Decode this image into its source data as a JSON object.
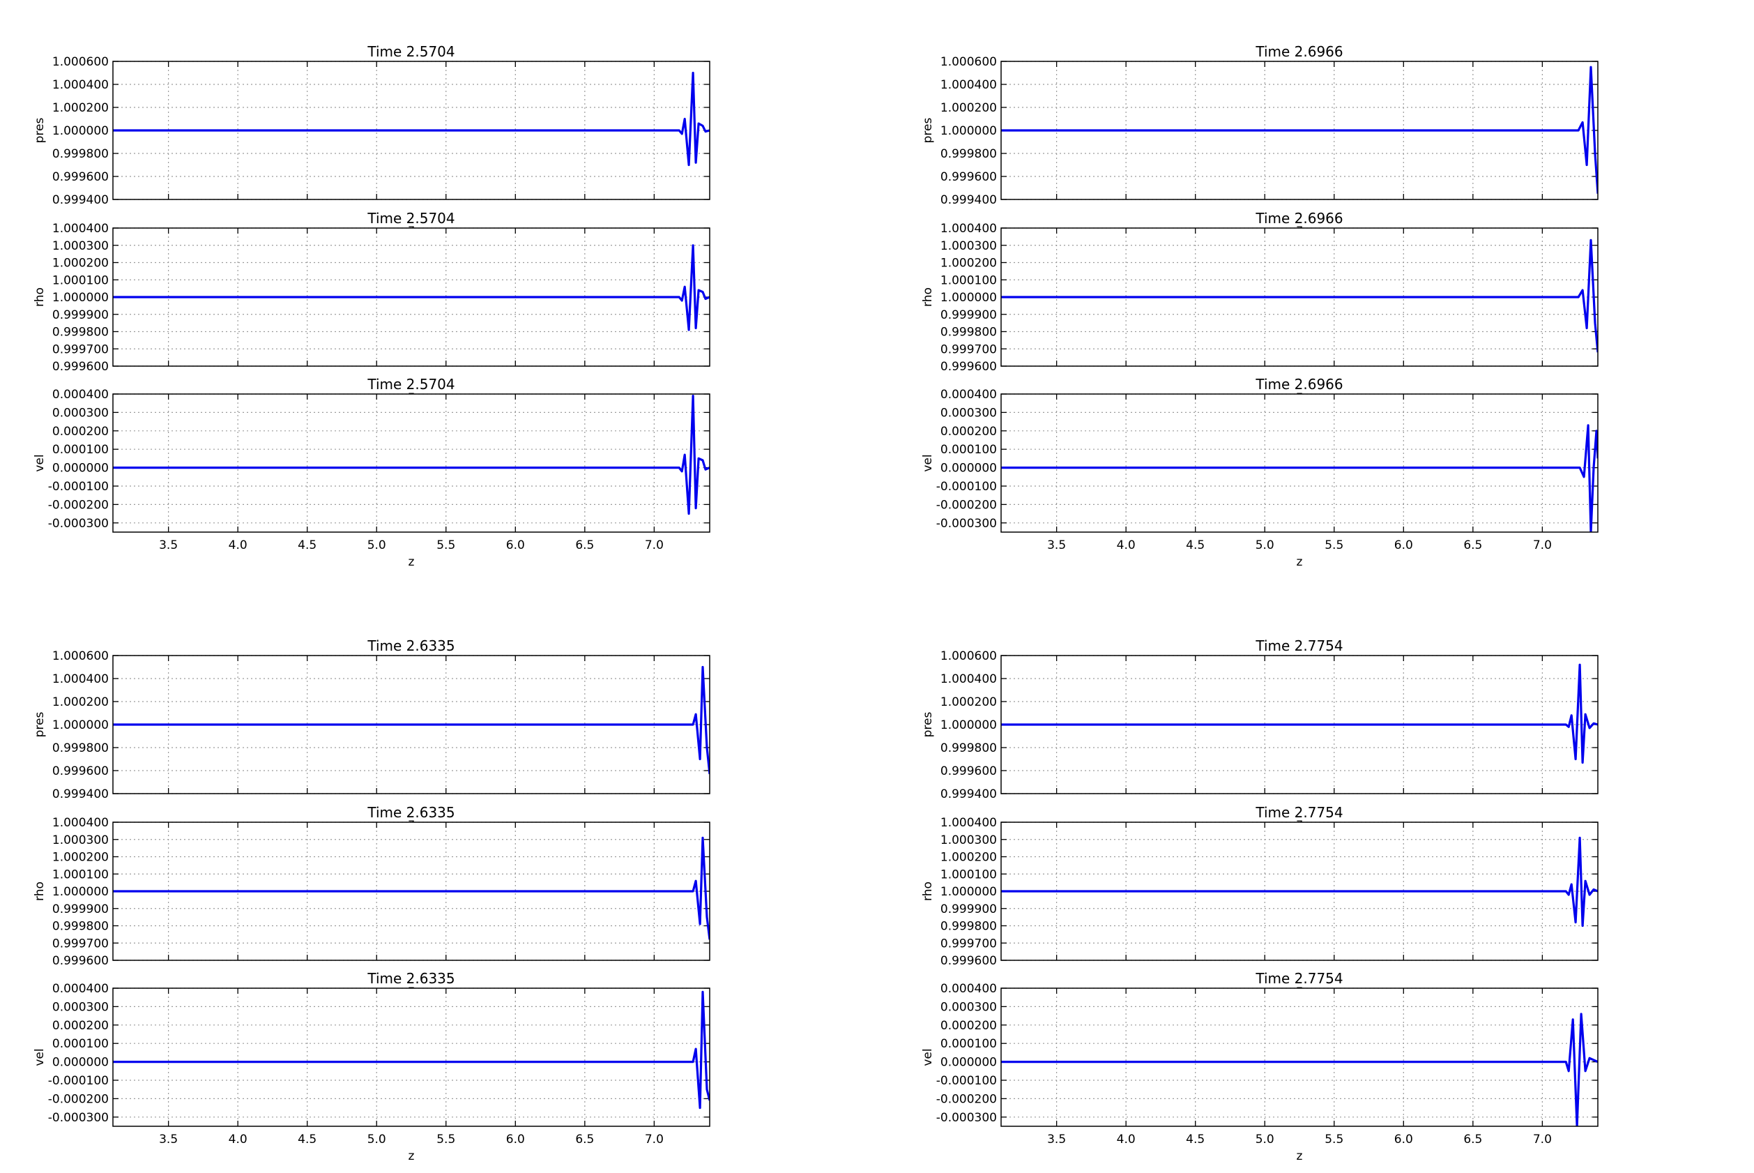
{
  "figure": {
    "line_color": "#0000ee",
    "grid_color": "#9a9a9a",
    "background": "#ffffff"
  },
  "chart_data": [
    {
      "type": "line",
      "title": "Time 2.5704",
      "xlabel": "z",
      "ylabel": "pres",
      "xlim": [
        3.1,
        7.4
      ],
      "ylim": [
        0.9994,
        1.0006
      ],
      "xticks": [
        3.5,
        4.0,
        4.5,
        5.0,
        5.5,
        6.0,
        6.5,
        7.0
      ],
      "xtick_labels": [],
      "yticks": [
        "1.000600",
        "1.000400",
        "1.000200",
        "1.000000",
        "0.999800",
        "0.999600",
        "0.999400"
      ],
      "grid": true,
      "series": [
        {
          "x": [
            3.1,
            7.14,
            7.18,
            7.2,
            7.22,
            7.25,
            7.28,
            7.3,
            7.32,
            7.35,
            7.37,
            7.4
          ],
          "y": [
            1.0,
            1.0,
            1.0,
            0.99997,
            1.0001,
            0.9997,
            1.0005,
            0.99972,
            1.00006,
            1.00004,
            0.99999,
            1.0
          ]
        }
      ]
    },
    {
      "type": "line",
      "title": "Time 2.5704",
      "xlabel": "z",
      "ylabel": "rho",
      "xlim": [
        3.1,
        7.4
      ],
      "ylim": [
        0.9996,
        1.0004
      ],
      "xticks": [
        3.5,
        4.0,
        4.5,
        5.0,
        5.5,
        6.0,
        6.5,
        7.0
      ],
      "xtick_labels": [],
      "yticks": [
        "1.000400",
        "1.000300",
        "1.000200",
        "1.000100",
        "1.000000",
        "0.999900",
        "0.999800",
        "0.999700",
        "0.999600"
      ],
      "grid": true,
      "series": [
        {
          "x": [
            3.1,
            7.14,
            7.18,
            7.2,
            7.22,
            7.25,
            7.28,
            7.3,
            7.32,
            7.35,
            7.37,
            7.4
          ],
          "y": [
            1.0,
            1.0,
            1.0,
            0.99998,
            1.00006,
            0.99981,
            1.0003,
            0.99982,
            1.00004,
            1.00003,
            0.99999,
            1.0
          ]
        }
      ]
    },
    {
      "type": "line",
      "title": "Time 2.5704",
      "xlabel": "z",
      "ylabel": "vel",
      "xlim": [
        3.1,
        7.4
      ],
      "ylim": [
        -0.00035,
        0.0004
      ],
      "xticks": [
        3.5,
        4.0,
        4.5,
        5.0,
        5.5,
        6.0,
        6.5,
        7.0
      ],
      "xtick_labels": [
        "3.5",
        "4.0",
        "4.5",
        "5.0",
        "5.5",
        "6.0",
        "6.5",
        "7.0"
      ],
      "yticks": [
        "0.000400",
        "0.000300",
        "0.000200",
        "0.000100",
        "0.000000",
        "-0.000100",
        "-0.000200",
        "-0.000300"
      ],
      "grid": true,
      "series": [
        {
          "x": [
            3.1,
            7.14,
            7.18,
            7.2,
            7.22,
            7.25,
            7.28,
            7.3,
            7.32,
            7.35,
            7.37,
            7.4
          ],
          "y": [
            0.0,
            0.0,
            0.0,
            -2e-05,
            7e-05,
            -0.00025,
            0.00039,
            -0.00022,
            5e-05,
            4e-05,
            -1e-05,
            0.0
          ]
        }
      ]
    },
    {
      "type": "line",
      "title": "Time 2.6335",
      "xlabel": "z",
      "ylabel": "pres",
      "xlim": [
        3.1,
        7.4
      ],
      "ylim": [
        0.9994,
        1.0006
      ],
      "xticks": [
        3.5,
        4.0,
        4.5,
        5.0,
        5.5,
        6.0,
        6.5,
        7.0
      ],
      "xtick_labels": [],
      "yticks": [
        "1.000600",
        "1.000400",
        "1.000200",
        "1.000000",
        "0.999800",
        "0.999600",
        "0.999400"
      ],
      "grid": true,
      "series": [
        {
          "x": [
            3.1,
            7.24,
            7.28,
            7.3,
            7.33,
            7.35,
            7.38,
            7.4
          ],
          "y": [
            1.0,
            1.0,
            1.0,
            1.00009,
            0.9997,
            1.0005,
            0.9998,
            0.99957
          ]
        }
      ]
    },
    {
      "type": "line",
      "title": "Time 2.6335",
      "xlabel": "z",
      "ylabel": "rho",
      "xlim": [
        3.1,
        7.4
      ],
      "ylim": [
        0.9996,
        1.0004
      ],
      "xticks": [
        3.5,
        4.0,
        4.5,
        5.0,
        5.5,
        6.0,
        6.5,
        7.0
      ],
      "xtick_labels": [],
      "yticks": [
        "1.000400",
        "1.000300",
        "1.000200",
        "1.000100",
        "1.000000",
        "0.999900",
        "0.999800",
        "0.999700",
        "0.999600"
      ],
      "grid": true,
      "series": [
        {
          "x": [
            3.1,
            7.24,
            7.28,
            7.3,
            7.33,
            7.35,
            7.38,
            7.4
          ],
          "y": [
            1.0,
            1.0,
            1.0,
            1.00006,
            0.99981,
            1.00031,
            0.99985,
            0.99972
          ]
        }
      ]
    },
    {
      "type": "line",
      "title": "Time 2.6335",
      "xlabel": "z",
      "ylabel": "vel",
      "xlim": [
        3.1,
        7.4
      ],
      "ylim": [
        -0.00035,
        0.0004
      ],
      "xticks": [
        3.5,
        4.0,
        4.5,
        5.0,
        5.5,
        6.0,
        6.5,
        7.0
      ],
      "xtick_labels": [
        "3.5",
        "4.0",
        "4.5",
        "5.0",
        "5.5",
        "6.0",
        "6.5",
        "7.0"
      ],
      "yticks": [
        "0.000400",
        "0.000300",
        "0.000200",
        "0.000100",
        "0.000000",
        "-0.000100",
        "-0.000200",
        "-0.000300"
      ],
      "grid": true,
      "series": [
        {
          "x": [
            3.1,
            7.24,
            7.28,
            7.3,
            7.33,
            7.35,
            7.38,
            7.4
          ],
          "y": [
            0.0,
            0.0,
            0.0,
            7e-05,
            -0.00025,
            0.00038,
            -0.00015,
            -0.00021
          ]
        }
      ]
    },
    {
      "type": "line",
      "title": "Time 2.6966",
      "xlabel": "z",
      "ylabel": "pres",
      "xlim": [
        3.1,
        7.4
      ],
      "ylim": [
        0.9994,
        1.0006
      ],
      "xticks": [
        3.5,
        4.0,
        4.5,
        5.0,
        5.5,
        6.0,
        6.5,
        7.0
      ],
      "xtick_labels": [],
      "yticks": [
        "1.000600",
        "1.000400",
        "1.000200",
        "1.000000",
        "0.999800",
        "0.999600",
        "0.999400"
      ],
      "grid": true,
      "series": [
        {
          "x": [
            3.1,
            7.21,
            7.26,
            7.29,
            7.32,
            7.35,
            7.38,
            7.4
          ],
          "y": [
            1.0,
            1.0,
            1.0,
            1.00007,
            0.9997,
            1.00055,
            0.9998,
            0.99945
          ]
        }
      ]
    },
    {
      "type": "line",
      "title": "Time 2.6966",
      "xlabel": "z",
      "ylabel": "rho",
      "xlim": [
        3.1,
        7.4
      ],
      "ylim": [
        0.9996,
        1.0004
      ],
      "xticks": [
        3.5,
        4.0,
        4.5,
        5.0,
        5.5,
        6.0,
        6.5,
        7.0
      ],
      "xtick_labels": [],
      "yticks": [
        "1.000400",
        "1.000300",
        "1.000200",
        "1.000100",
        "1.000000",
        "0.999900",
        "0.999800",
        "0.999700",
        "0.999600"
      ],
      "grid": true,
      "series": [
        {
          "x": [
            3.1,
            7.21,
            7.26,
            7.29,
            7.32,
            7.35,
            7.38,
            7.4
          ],
          "y": [
            1.0,
            1.0,
            1.0,
            1.00004,
            0.99982,
            1.00033,
            0.99985,
            0.99968
          ]
        }
      ]
    },
    {
      "type": "line",
      "title": "Time 2.6966",
      "xlabel": "z",
      "ylabel": "vel",
      "xlim": [
        3.1,
        7.4
      ],
      "ylim": [
        -0.00035,
        0.0004
      ],
      "xticks": [
        3.5,
        4.0,
        4.5,
        5.0,
        5.5,
        6.0,
        6.5,
        7.0
      ],
      "xtick_labels": [
        "3.5",
        "4.0",
        "4.5",
        "5.0",
        "5.5",
        "6.0",
        "6.5",
        "7.0"
      ],
      "yticks": [
        "0.000400",
        "0.000300",
        "0.000200",
        "0.000100",
        "0.000000",
        "-0.000100",
        "-0.000200",
        "-0.000300"
      ],
      "grid": true,
      "series": [
        {
          "x": [
            3.1,
            7.23,
            7.27,
            7.3,
            7.33,
            7.35,
            7.37,
            7.39,
            7.4
          ],
          "y": [
            0.0,
            0.0,
            0.0,
            -5e-05,
            0.00023,
            -0.00035,
            0.0,
            0.0002,
            5e-05
          ]
        }
      ]
    },
    {
      "type": "line",
      "title": "Time 2.7754",
      "xlabel": "z",
      "ylabel": "pres",
      "xlim": [
        3.1,
        7.4
      ],
      "ylim": [
        0.9994,
        1.0006
      ],
      "xticks": [
        3.5,
        4.0,
        4.5,
        5.0,
        5.5,
        6.0,
        6.5,
        7.0
      ],
      "xtick_labels": [],
      "yticks": [
        "1.000600",
        "1.000400",
        "1.000200",
        "1.000000",
        "0.999800",
        "0.999600",
        "0.999400"
      ],
      "grid": true,
      "series": [
        {
          "x": [
            3.1,
            7.13,
            7.17,
            7.19,
            7.21,
            7.24,
            7.27,
            7.29,
            7.31,
            7.34,
            7.37,
            7.4
          ],
          "y": [
            1.0,
            1.0,
            1.0,
            0.99998,
            1.00008,
            0.9997,
            1.00052,
            0.99967,
            1.00009,
            0.99997,
            1.00001,
            1.0
          ]
        }
      ]
    },
    {
      "type": "line",
      "title": "Time 2.7754",
      "xlabel": "z",
      "ylabel": "rho",
      "xlim": [
        3.1,
        7.4
      ],
      "ylim": [
        0.9996,
        1.0004
      ],
      "xticks": [
        3.5,
        4.0,
        4.5,
        5.0,
        5.5,
        6.0,
        6.5,
        7.0
      ],
      "xtick_labels": [],
      "yticks": [
        "1.000400",
        "1.000300",
        "1.000200",
        "1.000100",
        "1.000000",
        "0.999900",
        "0.999800",
        "0.999700",
        "0.999600"
      ],
      "grid": true,
      "series": [
        {
          "x": [
            3.1,
            7.13,
            7.17,
            7.19,
            7.21,
            7.24,
            7.27,
            7.29,
            7.31,
            7.34,
            7.37,
            7.4
          ],
          "y": [
            1.0,
            1.0,
            1.0,
            0.99998,
            1.00004,
            0.99982,
            1.00031,
            0.9998,
            1.00006,
            0.99998,
            1.00001,
            1.0
          ]
        }
      ]
    },
    {
      "type": "line",
      "title": "Time 2.7754",
      "xlabel": "z",
      "ylabel": "vel",
      "xlim": [
        3.1,
        7.4
      ],
      "ylim": [
        -0.00035,
        0.0004
      ],
      "xticks": [
        3.5,
        4.0,
        4.5,
        5.0,
        5.5,
        6.0,
        6.5,
        7.0
      ],
      "xtick_labels": [
        "3.5",
        "4.0",
        "4.5",
        "5.0",
        "5.5",
        "6.0",
        "6.5",
        "7.0"
      ],
      "yticks": [
        "0.000400",
        "0.000300",
        "0.000200",
        "0.000100",
        "0.000000",
        "-0.000100",
        "-0.000200",
        "-0.000300"
      ],
      "grid": true,
      "series": [
        {
          "x": [
            3.1,
            7.13,
            7.17,
            7.19,
            7.22,
            7.25,
            7.28,
            7.31,
            7.34,
            7.37,
            7.4
          ],
          "y": [
            0.0,
            0.0,
            0.0,
            -5e-05,
            0.00023,
            -0.00035,
            0.00026,
            -5e-05,
            2e-05,
            1e-05,
            0.0
          ]
        }
      ]
    }
  ]
}
